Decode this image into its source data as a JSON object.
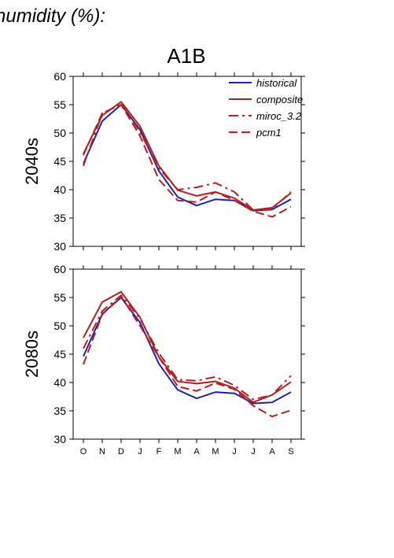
{
  "figure": {
    "header_text": "humidity (%):",
    "scenario_title": "A1B"
  },
  "colors": {
    "historical": "#1f1fb4",
    "model": "#b41f1f",
    "axis": "#000000"
  },
  "legend": [
    {
      "key": "historical",
      "label": "historical",
      "style": "solid",
      "color": "#1f1fb4"
    },
    {
      "key": "composite",
      "label": "composite",
      "style": "solid",
      "color": "#b41f1f"
    },
    {
      "key": "miroc",
      "label": "miroc_3.2",
      "style": "dashdot",
      "color": "#b41f1f"
    },
    {
      "key": "pcm1",
      "label": "pcm1",
      "style": "dashed",
      "color": "#b41f1f"
    }
  ],
  "chart_data": [
    {
      "type": "line",
      "panel_label": "2040s",
      "categories": [
        "O",
        "N",
        "D",
        "J",
        "F",
        "M",
        "A",
        "M",
        "J",
        "J",
        "A",
        "S"
      ],
      "ylim": [
        30,
        60
      ],
      "yticks": [
        30,
        35,
        40,
        45,
        50,
        55,
        60
      ],
      "series": [
        {
          "name": "historical",
          "values": [
            44.6,
            52.1,
            55.0,
            50.6,
            43.3,
            38.7,
            37.2,
            38.3,
            38.1,
            36.3,
            36.5,
            38.3
          ]
        },
        {
          "name": "composite",
          "values": [
            46.3,
            53.1,
            55.5,
            51.2,
            44.2,
            39.9,
            38.9,
            39.6,
            38.5,
            36.4,
            36.8,
            39.4
          ]
        },
        {
          "name": "miroc_3.2",
          "values": [
            44.2,
            53.4,
            55.2,
            50.2,
            43.8,
            40.0,
            40.4,
            41.2,
            39.6,
            36.4,
            36.6,
            39.6
          ]
        },
        {
          "name": "pcm1",
          "values": [
            46.1,
            53.5,
            55.0,
            49.5,
            41.8,
            38.1,
            37.8,
            39.6,
            38.1,
            36.2,
            35.2,
            37.0
          ]
        }
      ]
    },
    {
      "type": "line",
      "panel_label": "2080s",
      "categories": [
        "O",
        "N",
        "D",
        "J",
        "F",
        "M",
        "A",
        "M",
        "J",
        "J",
        "A",
        "S"
      ],
      "ylim": [
        30,
        60
      ],
      "yticks": [
        30,
        35,
        40,
        45,
        50,
        55,
        60
      ],
      "series": [
        {
          "name": "historical",
          "values": [
            44.6,
            52.1,
            55.0,
            50.6,
            43.3,
            38.7,
            37.2,
            38.3,
            38.1,
            36.3,
            36.5,
            38.3
          ]
        },
        {
          "name": "composite",
          "values": [
            47.9,
            54.2,
            56.0,
            51.5,
            44.5,
            40.2,
            39.8,
            40.2,
            39.0,
            36.5,
            37.8,
            40.1
          ]
        },
        {
          "name": "miroc_3.2",
          "values": [
            46.0,
            52.6,
            55.4,
            51.3,
            45.2,
            40.5,
            40.3,
            41.0,
            39.5,
            37.0,
            37.8,
            41.2
          ]
        },
        {
          "name": "pcm1",
          "values": [
            43.2,
            52.0,
            55.2,
            50.0,
            44.5,
            39.3,
            38.5,
            39.9,
            38.8,
            35.9,
            34.0,
            35.1
          ]
        }
      ]
    }
  ]
}
